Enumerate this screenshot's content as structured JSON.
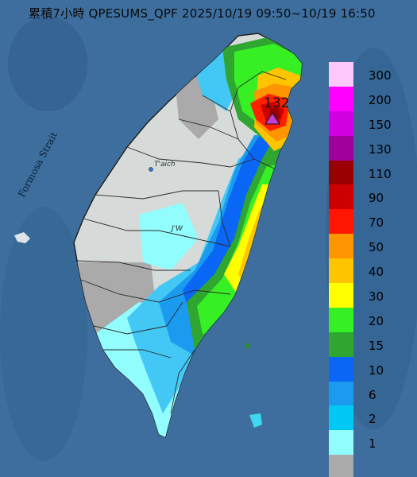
{
  "map": {
    "title": "累積7小時 QPESUMS_QPF 2025/10/19 09:50~10/19 16:50",
    "strait_label": "Formosa Strait",
    "places": [
      "T'aich",
      "J'W"
    ],
    "max_value_label": "132"
  },
  "legend": {
    "items": [
      {
        "label": "300",
        "color": "#ffc8fa"
      },
      {
        "label": "200",
        "color": "#ff00ff"
      },
      {
        "label": "150",
        "color": "#d000e0"
      },
      {
        "label": "130",
        "color": "#a0009c"
      },
      {
        "label": "110",
        "color": "#9a0000"
      },
      {
        "label": "90",
        "color": "#cc0000"
      },
      {
        "label": "70",
        "color": "#ff1500"
      },
      {
        "label": "50",
        "color": "#ff9500"
      },
      {
        "label": "40",
        "color": "#ffc400"
      },
      {
        "label": "30",
        "color": "#ffff00"
      },
      {
        "label": "20",
        "color": "#37f024"
      },
      {
        "label": "15",
        "color": "#2fa62f"
      },
      {
        "label": "10",
        "color": "#0a66f5"
      },
      {
        "label": "6",
        "color": "#1b9bf0"
      },
      {
        "label": "2",
        "color": "#00c8f5"
      },
      {
        "label": "1",
        "color": "#92fdfd"
      },
      {
        "label": "",
        "color": "#aaaaaa"
      }
    ]
  }
}
